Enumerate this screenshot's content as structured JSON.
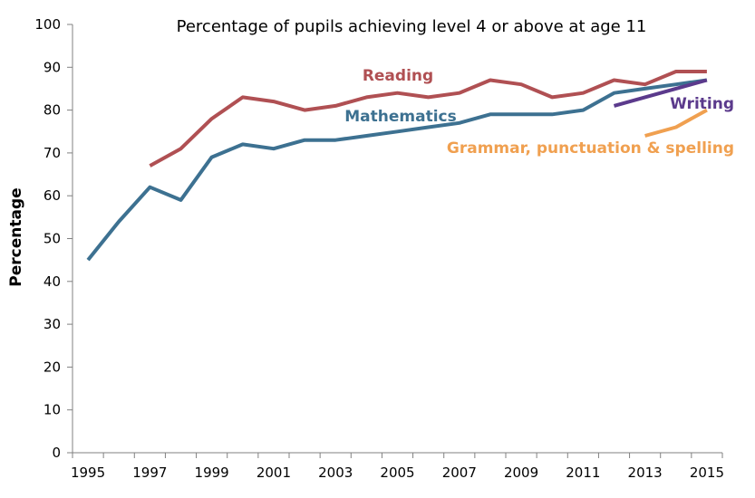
{
  "chart_data": {
    "type": "line",
    "title": "Percentage of pupils achieving level 4 or above at age 11",
    "xlabel": "",
    "ylabel": "Percentage",
    "ylim": [
      0,
      100
    ],
    "xlim": [
      1995,
      2015
    ],
    "yticks": [
      "0",
      "10",
      "20",
      "30",
      "40",
      "50",
      "60",
      "70",
      "80",
      "90",
      "100"
    ],
    "xticks": [
      "1995",
      "1997",
      "1999",
      "2001",
      "2003",
      "2005",
      "2007",
      "2009",
      "2011",
      "2013",
      "2015"
    ],
    "grid": false,
    "legend": "inline labels",
    "series": [
      {
        "name": "Reading",
        "color": "#b05053",
        "points": [
          [
            1997,
            67
          ],
          [
            1998,
            71
          ],
          [
            1999,
            78
          ],
          [
            2000,
            83
          ],
          [
            2001,
            82
          ],
          [
            2002,
            80
          ],
          [
            2003,
            81
          ],
          [
            2004,
            83
          ],
          [
            2005,
            84
          ],
          [
            2006,
            83
          ],
          [
            2007,
            84
          ],
          [
            2008,
            87
          ],
          [
            2009,
            86
          ],
          [
            2010,
            83
          ],
          [
            2011,
            84
          ],
          [
            2012,
            87
          ],
          [
            2013,
            86
          ],
          [
            2014,
            89
          ],
          [
            2015,
            89
          ]
        ]
      },
      {
        "name": "Mathematics",
        "color": "#3d7191",
        "points": [
          [
            1995,
            45
          ],
          [
            1996,
            54
          ],
          [
            1997,
            62
          ],
          [
            1998,
            59
          ],
          [
            1999,
            69
          ],
          [
            2000,
            72
          ],
          [
            2001,
            71
          ],
          [
            2002,
            73
          ],
          [
            2003,
            73
          ],
          [
            2004,
            74
          ],
          [
            2005,
            75
          ],
          [
            2006,
            76
          ],
          [
            2007,
            77
          ],
          [
            2008,
            79
          ],
          [
            2009,
            79
          ],
          [
            2010,
            79
          ],
          [
            2011,
            80
          ],
          [
            2012,
            84
          ],
          [
            2013,
            85
          ],
          [
            2014,
            86
          ],
          [
            2015,
            87
          ]
        ]
      },
      {
        "name": "Writing",
        "color": "#5b3a8c",
        "points": [
          [
            2012,
            81
          ],
          [
            2013,
            83
          ],
          [
            2014,
            85
          ],
          [
            2015,
            87
          ]
        ]
      },
      {
        "name": "Grammar, punctuation & spelling",
        "color": "#f0a050",
        "points": [
          [
            2013,
            74
          ],
          [
            2014,
            76
          ],
          [
            2015,
            80
          ]
        ]
      }
    ]
  }
}
